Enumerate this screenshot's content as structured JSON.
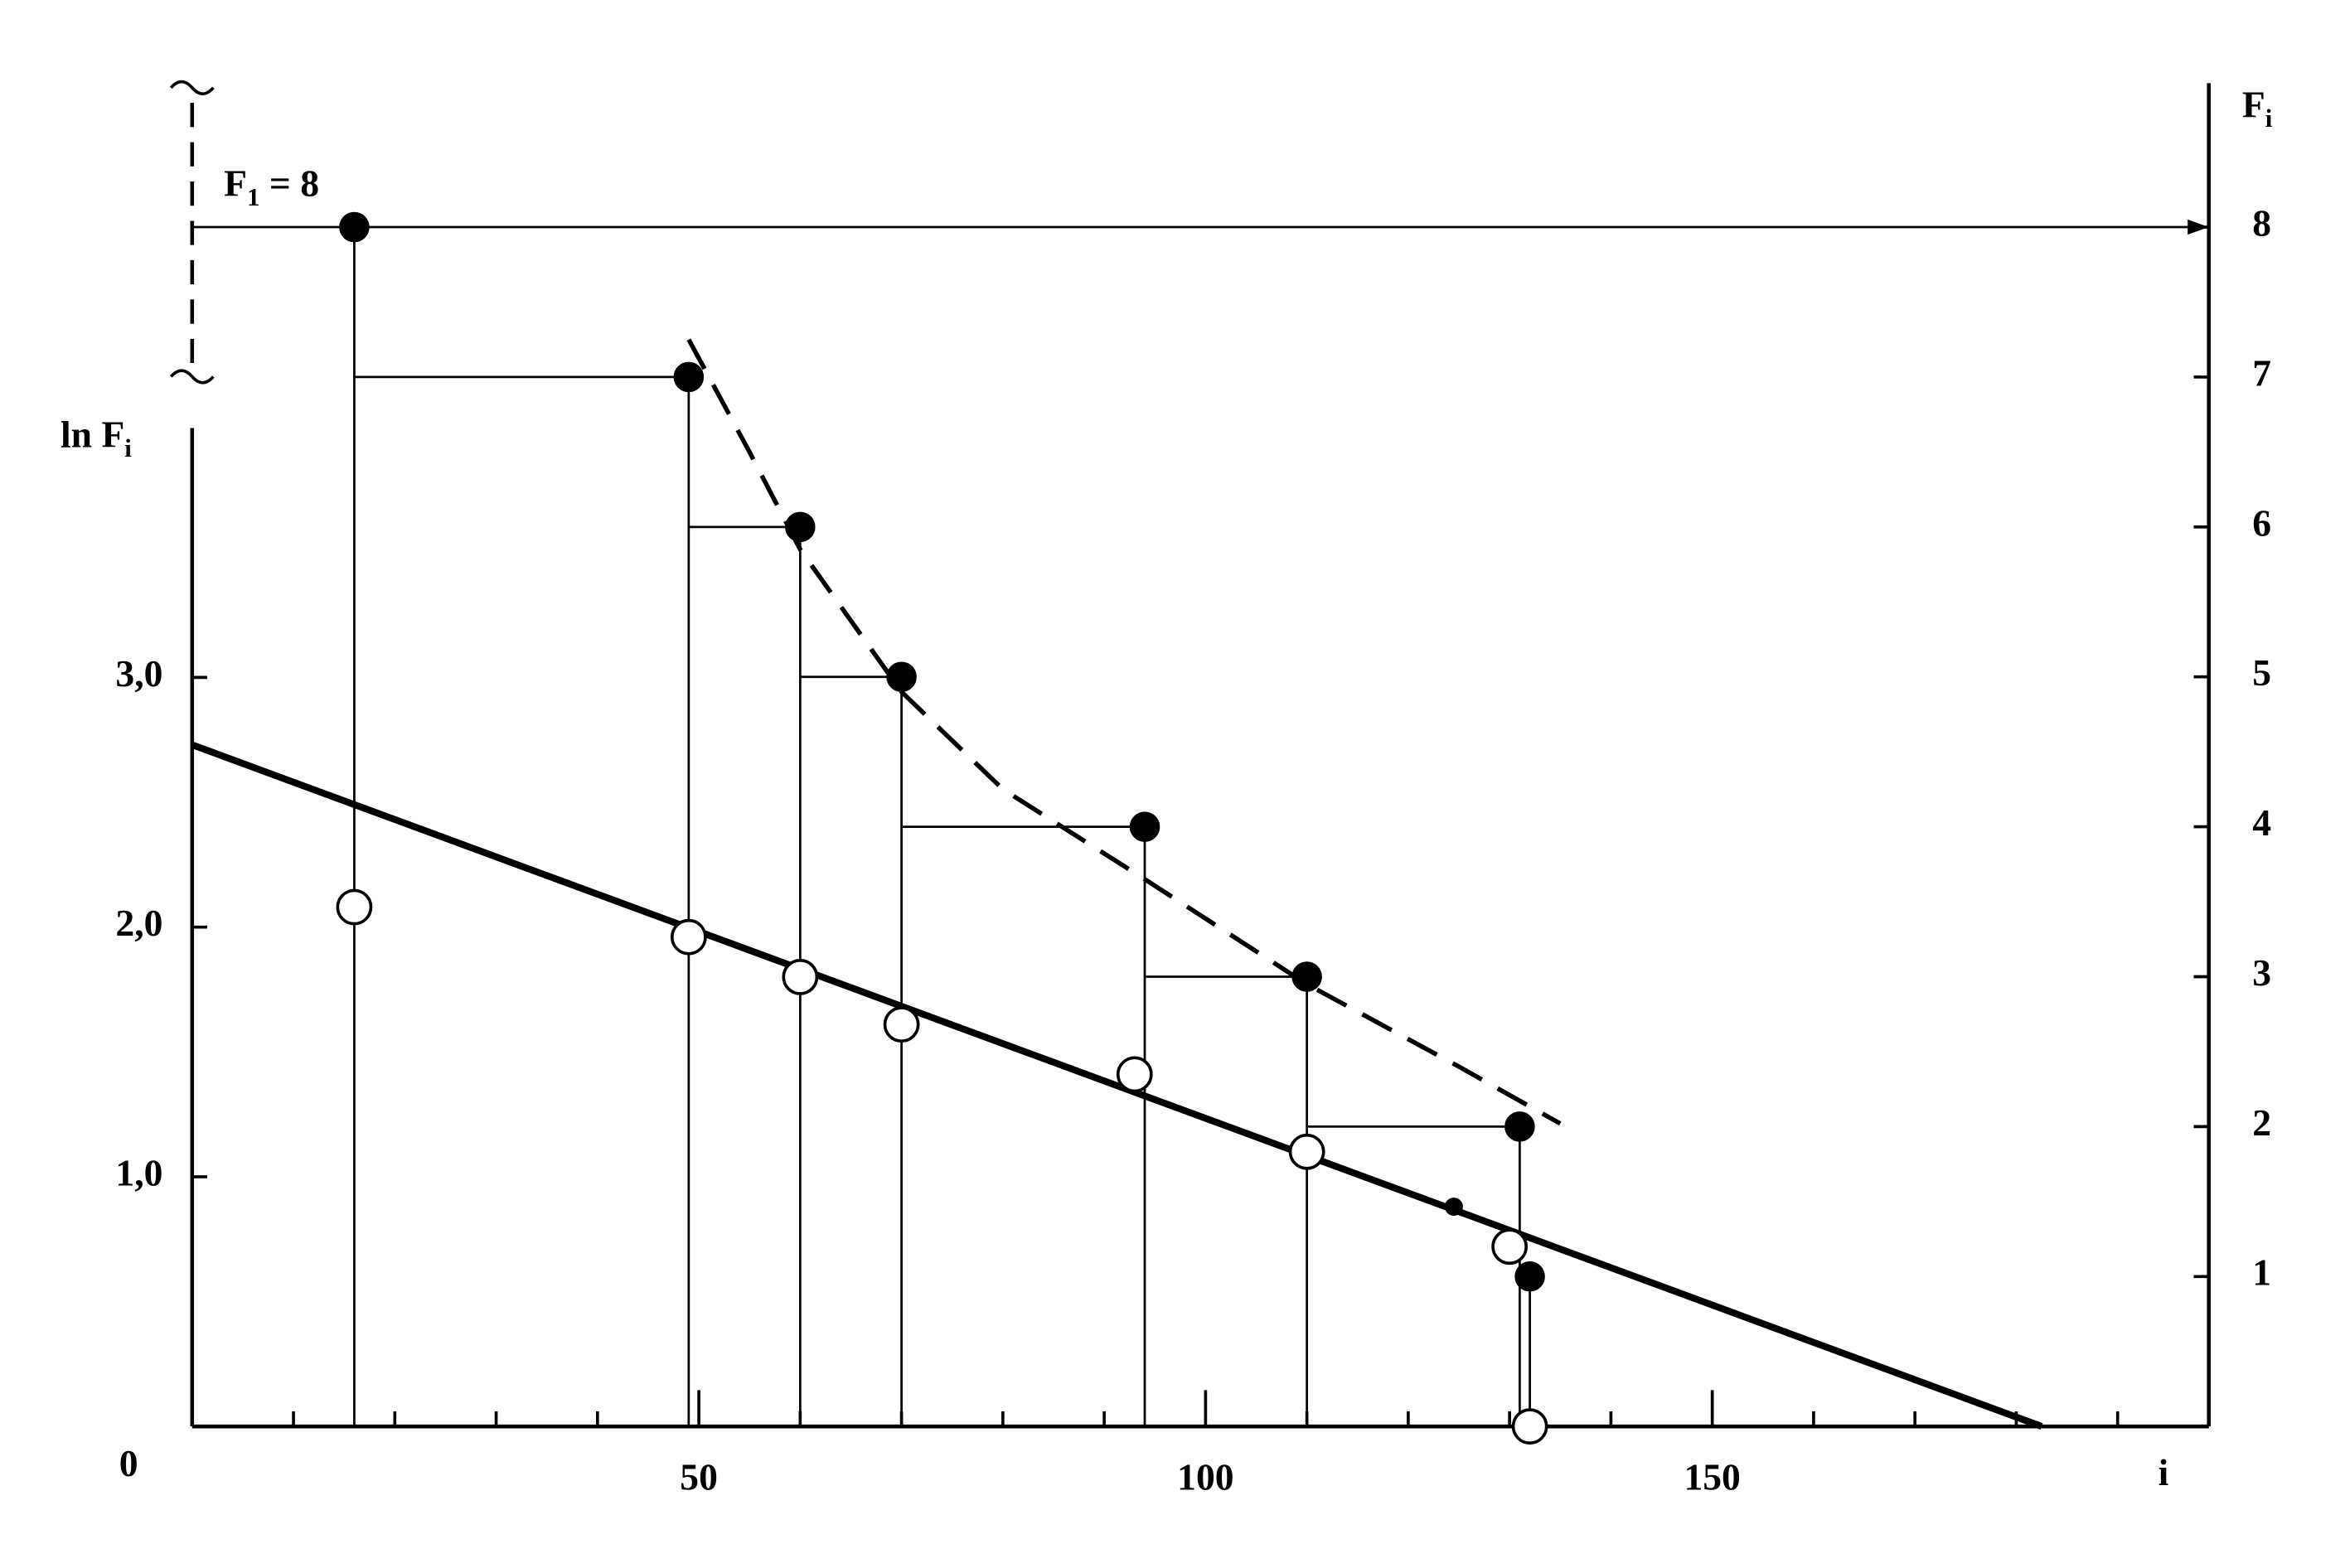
{
  "chart_data": {
    "type": "line",
    "xlabel": "i",
    "ylabel": [
      "ln F",
      "i"
    ],
    "y2label": [
      "F",
      "i"
    ],
    "annotation": [
      "F",
      "1",
      " = 8"
    ],
    "xlim": [
      0,
      199
    ],
    "xticks": [
      50,
      100,
      150
    ],
    "xminorticks": [
      10,
      20,
      30,
      40,
      60,
      70,
      80,
      90,
      110,
      120,
      130,
      140,
      160,
      170,
      180,
      190
    ],
    "ylim": [
      0,
      5.38
    ],
    "yticks": [
      0,
      {
        "value": 1,
        "label": "1,0"
      },
      {
        "value": 2,
        "label": "2,0"
      },
      {
        "value": 3,
        "label": "3,0"
      }
    ],
    "y2lim": [
      0,
      8.96
    ],
    "y2ticks": [
      1,
      2,
      3,
      4,
      5,
      6,
      7,
      8
    ],
    "series": [
      {
        "color": "#000000",
        "line": "solid",
        "x": [
          0,
          182.5
        ],
        "values": [
          2.73,
          0
        ]
      },
      {
        "color": "#000000",
        "line": "dashed",
        "axis": "y2",
        "x": [
          49,
          55,
          60,
          70,
          80,
          94,
          110,
          125,
          135
        ],
        "values": [
          7.25,
          6.5,
          5.85,
          4.9,
          4.25,
          3.65,
          2.95,
          2.4,
          2.02
        ]
      },
      {
        "color": "#000000",
        "marker": "filled",
        "steps": true,
        "axis": "y2",
        "x": [
          16,
          49,
          60,
          70,
          94,
          110,
          131,
          132
        ],
        "values": [
          8,
          7,
          6,
          5,
          4,
          3,
          2,
          1
        ]
      },
      {
        "color": "#000000",
        "marker": "open",
        "x": [
          16,
          49,
          60,
          70,
          93,
          110,
          130,
          132
        ],
        "values": [
          2.08,
          1.96,
          1.8,
          1.61,
          1.41,
          1.1,
          0.72,
          0
        ]
      },
      {
        "color": "#000000",
        "marker": "small",
        "x": [
          124.5
        ],
        "values": [
          0.88
        ]
      }
    ]
  }
}
